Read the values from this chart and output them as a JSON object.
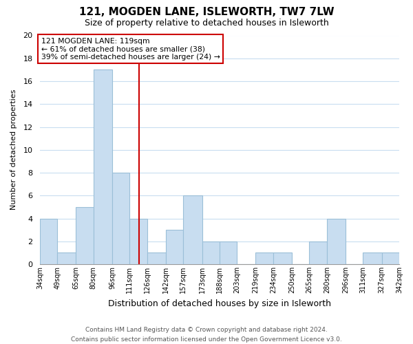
{
  "title": "121, MOGDEN LANE, ISLEWORTH, TW7 7LW",
  "subtitle": "Size of property relative to detached houses in Isleworth",
  "xlabel": "Distribution of detached houses by size in Isleworth",
  "ylabel": "Number of detached properties",
  "bar_color": "#c8ddf0",
  "bar_edge_color": "#9bbfd8",
  "bins": [
    34,
    49,
    65,
    80,
    96,
    111,
    126,
    142,
    157,
    173,
    188,
    203,
    219,
    234,
    250,
    265,
    280,
    296,
    311,
    327,
    342
  ],
  "bin_labels": [
    "34sqm",
    "49sqm",
    "65sqm",
    "80sqm",
    "96sqm",
    "111sqm",
    "126sqm",
    "142sqm",
    "157sqm",
    "173sqm",
    "188sqm",
    "203sqm",
    "219sqm",
    "234sqm",
    "250sqm",
    "265sqm",
    "280sqm",
    "296sqm",
    "311sqm",
    "327sqm",
    "342sqm"
  ],
  "counts": [
    4,
    1,
    5,
    17,
    8,
    4,
    1,
    3,
    6,
    2,
    2,
    0,
    1,
    1,
    0,
    2,
    4,
    0,
    1,
    1
  ],
  "vline_x": 119,
  "vline_color": "#cc0000",
  "ylim": [
    0,
    20
  ],
  "yticks": [
    0,
    2,
    4,
    6,
    8,
    10,
    12,
    14,
    16,
    18,
    20
  ],
  "annotation_line1": "121 MOGDEN LANE: 119sqm",
  "annotation_line2": "← 61% of detached houses are smaller (38)",
  "annotation_line3": "39% of semi-detached houses are larger (24) →",
  "annotation_box_color": "#ffffff",
  "annotation_box_edge": "#cc0000",
  "footer_line1": "Contains HM Land Registry data © Crown copyright and database right 2024.",
  "footer_line2": "Contains public sector information licensed under the Open Government Licence v3.0.",
  "bg_color": "#ffffff",
  "grid_color": "#c8ddf0"
}
